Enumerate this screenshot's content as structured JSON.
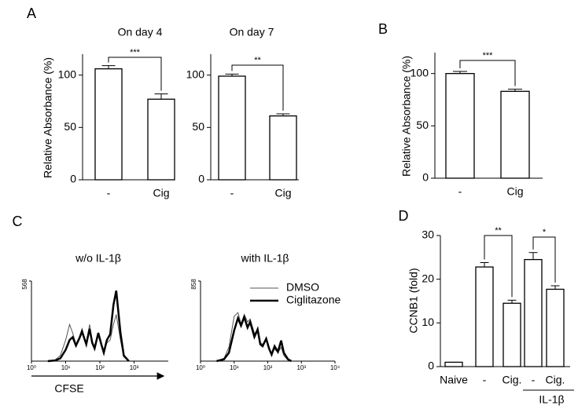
{
  "chart_data": [
    {
      "type": "bar",
      "panel": "A",
      "title": "On day 4",
      "y_label": "Relative Absorbance (%)",
      "categories": [
        "-",
        "Cig"
      ],
      "values": [
        106,
        77
      ],
      "errors": [
        3,
        5
      ],
      "color": "#ffffff",
      "ylim": [
        0,
        120
      ],
      "yticks": [
        0,
        50,
        100
      ],
      "significance": [
        "***"
      ]
    },
    {
      "type": "bar",
      "title": "On day 7",
      "categories": [
        "-",
        "Cig"
      ],
      "values": [
        99,
        61
      ],
      "errors": [
        2,
        2
      ],
      "color": "#ffffff",
      "ylim": [
        0,
        120
      ],
      "yticks": [
        0,
        50,
        100
      ],
      "significance": [
        "**"
      ]
    },
    {
      "type": "bar",
      "panel": "B",
      "y_label": "Relative Absorbance (%)",
      "categories": [
        "-",
        "Cig"
      ],
      "values": [
        100,
        83
      ],
      "errors": [
        2,
        2
      ],
      "color": "#ffffff",
      "ylim": [
        0,
        120
      ],
      "yticks": [
        0,
        50,
        100
      ],
      "significance": [
        "***"
      ]
    },
    {
      "type": "line",
      "panel": "C",
      "title": "w/o IL-1β",
      "x_label": "CFSE",
      "log_x": true,
      "x": [
        3,
        5,
        7,
        10,
        13,
        16,
        20,
        25,
        30,
        40,
        50,
        60,
        70,
        90,
        110,
        130,
        160,
        200,
        250,
        300,
        400,
        500,
        700
      ],
      "series": [
        {
          "name": "DMSO",
          "color": "#555555",
          "line_width": 1,
          "values": [
            0,
            10,
            40,
            150,
            260,
            200,
            120,
            170,
            230,
            120,
            260,
            140,
            100,
            180,
            110,
            60,
            130,
            150,
            260,
            330,
            150,
            30,
            0
          ]
        },
        {
          "name": "Ciglitazone",
          "color": "#000000",
          "line_width": 2.5,
          "values": [
            0,
            5,
            20,
            80,
            150,
            170,
            110,
            160,
            210,
            120,
            230,
            130,
            90,
            200,
            120,
            60,
            150,
            190,
            400,
            500,
            200,
            40,
            0
          ]
        }
      ],
      "xlim": [
        1,
        10000
      ],
      "xticks": [
        {
          "value": 1,
          "label": "10⁰"
        },
        {
          "value": 10,
          "label": "10¹"
        },
        {
          "value": 100,
          "label": "10²"
        },
        {
          "value": 1000,
          "label": "10³"
        }
      ],
      "ylim": [
        0,
        568
      ],
      "yticks": [
        568
      ],
      "legend": false
    },
    {
      "type": "line",
      "title": "with IL-1β",
      "log_x": true,
      "x": [
        3,
        5,
        7,
        10,
        13,
        16,
        20,
        25,
        30,
        40,
        50,
        60,
        70,
        90,
        110,
        130,
        160,
        200,
        250,
        300,
        400,
        500
      ],
      "series": [
        {
          "name": "DMSO",
          "color": "#555555",
          "line_width": 1,
          "values": [
            0,
            30,
            150,
            480,
            520,
            400,
            500,
            420,
            450,
            300,
            320,
            200,
            180,
            230,
            120,
            80,
            130,
            90,
            150,
            60,
            10,
            0
          ]
        },
        {
          "name": "Ciglitazone",
          "color": "#000000",
          "line_width": 2.5,
          "values": [
            0,
            20,
            90,
            330,
            460,
            380,
            470,
            360,
            420,
            260,
            340,
            180,
            160,
            240,
            130,
            70,
            160,
            100,
            220,
            90,
            20,
            0
          ]
        }
      ],
      "xlim": [
        1,
        10000
      ],
      "xticks": [
        {
          "value": 1,
          "label": "10⁰"
        },
        {
          "value": 10,
          "label": "10¹"
        },
        {
          "value": 100,
          "label": "10²"
        },
        {
          "value": 1000,
          "label": "10³"
        },
        {
          "value": 10000,
          "label": "10⁴"
        }
      ],
      "ylim": [
        0,
        858
      ],
      "yticks": [
        858
      ],
      "legend": true
    },
    {
      "type": "bar",
      "panel": "D",
      "y_label": "CCNB1 (fold)",
      "group_label": "IL-1β",
      "categories": [
        "Naive",
        "-",
        "Cig.",
        "-",
        "Cig."
      ],
      "values": [
        1,
        22.8,
        14.5,
        24.5,
        17.7
      ],
      "errors": [
        0,
        1,
        0.7,
        1.6,
        0.8
      ],
      "color": "#ffffff",
      "ylim": [
        0,
        30
      ],
      "yticks": [
        0,
        10,
        20,
        30
      ],
      "significance": [
        "**",
        "*"
      ]
    }
  ]
}
